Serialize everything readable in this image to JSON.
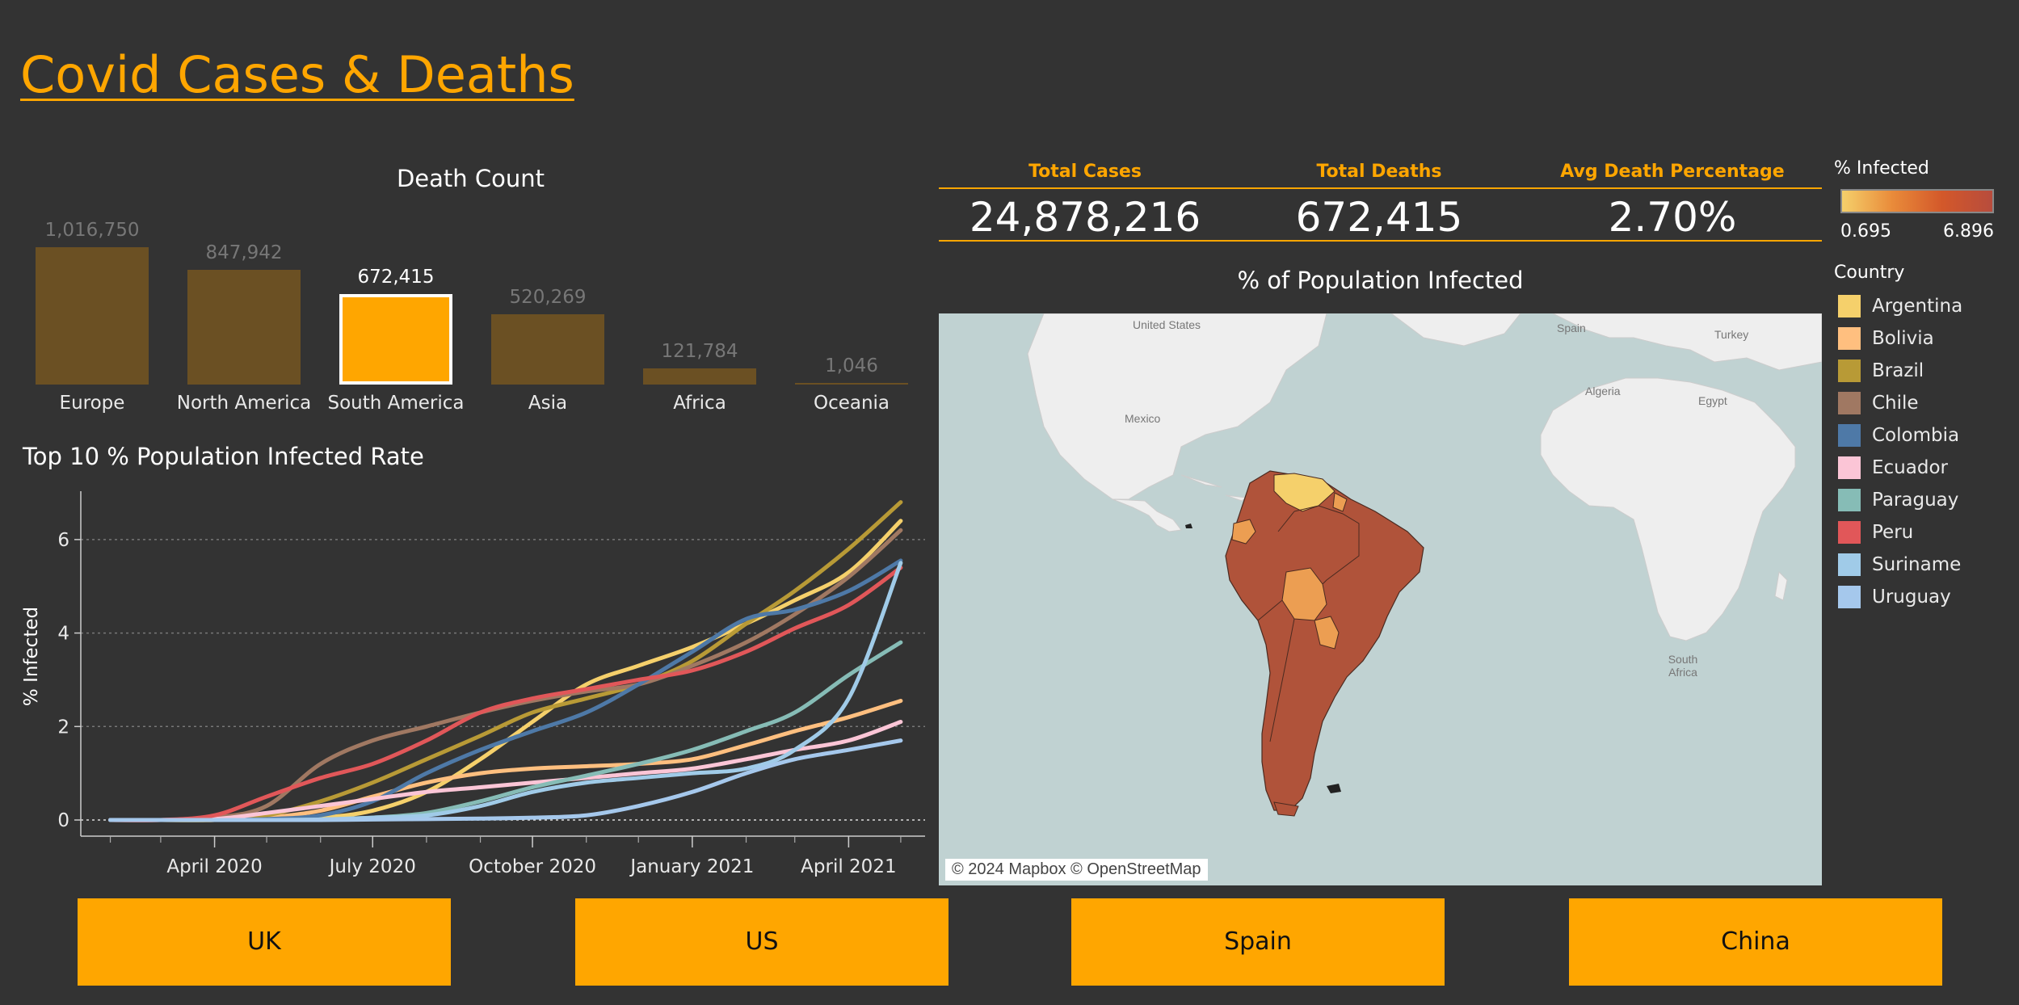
{
  "title": "Covid Cases & Deaths",
  "death_count": {
    "title": "Death Count",
    "bars": [
      {
        "category": "Europe",
        "label": "1,016,750",
        "value": 1016750,
        "selected": false
      },
      {
        "category": "North America",
        "label": "847,942",
        "value": 847942,
        "selected": false
      },
      {
        "category": "South America",
        "label": "672,415",
        "value": 672415,
        "selected": true
      },
      {
        "category": "Asia",
        "label": "520,269",
        "value": 520269,
        "selected": false
      },
      {
        "category": "Africa",
        "label": "121,784",
        "value": 121784,
        "selected": false
      },
      {
        "category": "Oceania",
        "label": "1,046",
        "value": 1046,
        "selected": false
      }
    ]
  },
  "kpis": [
    {
      "label": "Total Cases",
      "value": "24,878,216"
    },
    {
      "label": "Total Deaths",
      "value": "672,415"
    },
    {
      "label": "Avg Death Percentage",
      "value": "2.70%"
    }
  ],
  "map": {
    "title": "% of Population Infected",
    "attribution": "© 2024 Mapbox © OpenStreetMap",
    "labels": [
      "United States",
      "Mexico",
      "Spain",
      "Turkey",
      "Algeria",
      "Egypt",
      "South Africa"
    ],
    "colors": {
      "ocean": "#c0d2d2",
      "land": "#eeeeee",
      "high": "#b0533a",
      "mid": "#ec9e52",
      "low": "#f5d06b"
    }
  },
  "legend": {
    "infected_title": "% Infected",
    "min": "0.695",
    "max": "6.896",
    "country_title": "Country",
    "countries": [
      {
        "name": "Argentina",
        "color": "#f5d06b"
      },
      {
        "name": "Bolivia",
        "color": "#ffbf7f"
      },
      {
        "name": "Brazil",
        "color": "#b89a36"
      },
      {
        "name": "Chile",
        "color": "#a07862"
      },
      {
        "name": "Colombia",
        "color": "#4e79a7"
      },
      {
        "name": "Ecuador",
        "color": "#fbc5d6"
      },
      {
        "name": "Paraguay",
        "color": "#86bcb6"
      },
      {
        "name": "Peru",
        "color": "#e15759"
      },
      {
        "name": "Suriname",
        "color": "#a0cbe8"
      },
      {
        "name": "Uruguay",
        "color": "#a5c8ec"
      }
    ]
  },
  "buttons": [
    {
      "label": "UK"
    },
    {
      "label": "US"
    },
    {
      "label": "Spain"
    },
    {
      "label": "China"
    }
  ],
  "chart_data": {
    "type": "line",
    "title": "Top 10 % Population Infected Rate",
    "xlabel": "",
    "ylabel": "% Infected",
    "ylim": [
      0,
      7
    ],
    "yticks": [
      0,
      2,
      4,
      6
    ],
    "xticks": [
      "April 2020",
      "July 2020",
      "October 2020",
      "January 2021",
      "April 2021"
    ],
    "grid": true,
    "x": [
      "2020-02-01",
      "2020-03-01",
      "2020-04-01",
      "2020-05-01",
      "2020-06-01",
      "2020-07-01",
      "2020-08-01",
      "2020-09-01",
      "2020-10-01",
      "2020-11-01",
      "2020-12-01",
      "2021-01-01",
      "2021-02-01",
      "2021-03-01",
      "2021-04-01",
      "2021-05-01"
    ],
    "series": [
      {
        "name": "Argentina",
        "color": "#f5d06b",
        "values": [
          0,
          0,
          0,
          0.02,
          0.05,
          0.2,
          0.6,
          1.3,
          2.1,
          2.9,
          3.3,
          3.7,
          4.2,
          4.7,
          5.3,
          6.4
        ]
      },
      {
        "name": "Bolivia",
        "color": "#ffbf7f",
        "values": [
          0,
          0,
          0,
          0.05,
          0.2,
          0.5,
          0.8,
          1.0,
          1.1,
          1.15,
          1.2,
          1.3,
          1.6,
          1.9,
          2.2,
          2.55
        ]
      },
      {
        "name": "Brazil",
        "color": "#b89a36",
        "values": [
          0,
          0,
          0,
          0.1,
          0.4,
          0.8,
          1.3,
          1.8,
          2.3,
          2.6,
          2.9,
          3.4,
          4.2,
          4.9,
          5.8,
          6.8
        ]
      },
      {
        "name": "Chile",
        "color": "#a07862",
        "values": [
          0,
          0,
          0.05,
          0.3,
          1.2,
          1.7,
          2.0,
          2.3,
          2.55,
          2.75,
          2.9,
          3.3,
          3.8,
          4.4,
          5.2,
          6.2
        ]
      },
      {
        "name": "Colombia",
        "color": "#4e79a7",
        "values": [
          0,
          0,
          0,
          0.02,
          0.1,
          0.4,
          1.0,
          1.5,
          1.9,
          2.3,
          2.9,
          3.6,
          4.3,
          4.5,
          4.9,
          5.55
        ]
      },
      {
        "name": "Ecuador",
        "color": "#fbc5d6",
        "values": [
          0,
          0,
          0.02,
          0.15,
          0.3,
          0.45,
          0.6,
          0.7,
          0.8,
          0.9,
          1.0,
          1.1,
          1.3,
          1.5,
          1.7,
          2.1
        ]
      },
      {
        "name": "Paraguay",
        "color": "#86bcb6",
        "values": [
          0,
          0,
          0,
          0,
          0.01,
          0.05,
          0.15,
          0.4,
          0.7,
          0.95,
          1.2,
          1.5,
          1.9,
          2.3,
          3.1,
          3.8
        ]
      },
      {
        "name": "Peru",
        "color": "#e15759",
        "values": [
          0,
          0,
          0.1,
          0.5,
          0.9,
          1.2,
          1.7,
          2.3,
          2.6,
          2.8,
          3.0,
          3.2,
          3.6,
          4.1,
          4.6,
          5.4
        ]
      },
      {
        "name": "Suriname",
        "color": "#a0cbe8",
        "values": [
          0,
          0,
          0,
          0,
          0.01,
          0.05,
          0.1,
          0.3,
          0.6,
          0.8,
          0.9,
          1.0,
          1.1,
          1.5,
          2.6,
          5.5
        ]
      },
      {
        "name": "Uruguay",
        "color": "#a5c8ec",
        "values": [
          0,
          0,
          0,
          0,
          0,
          0.01,
          0.02,
          0.03,
          0.05,
          0.1,
          0.3,
          0.6,
          1.0,
          1.3,
          1.5,
          1.7
        ]
      }
    ]
  }
}
